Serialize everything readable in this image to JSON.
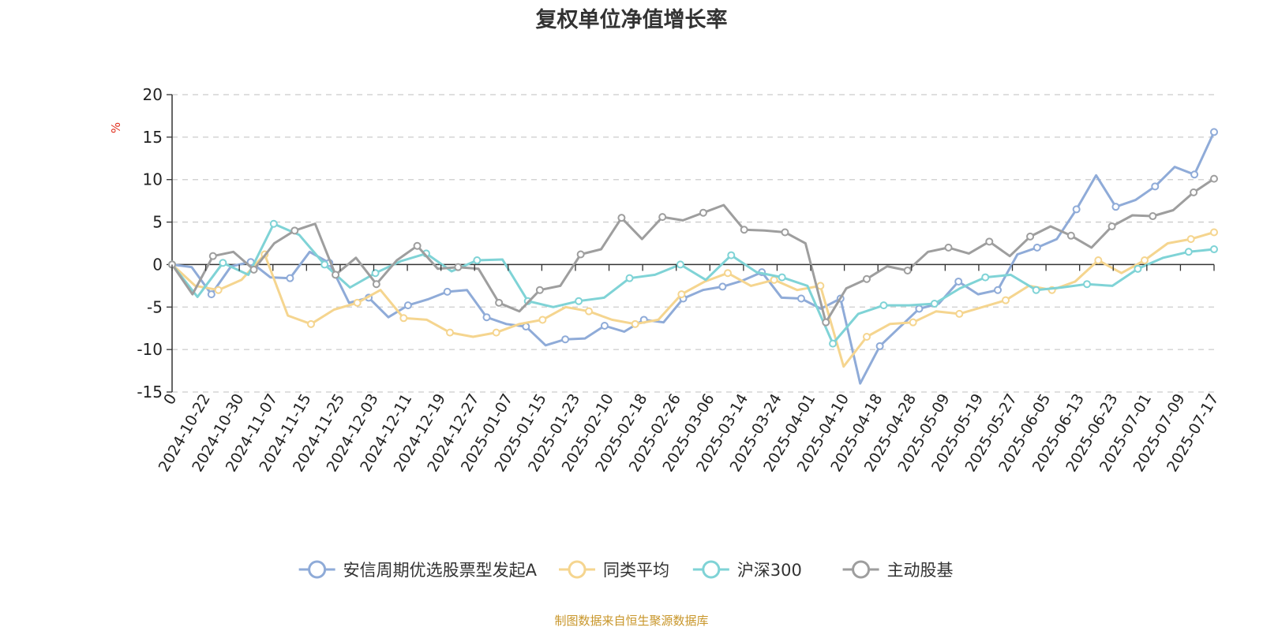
{
  "chart_data": {
    "type": "line",
    "title": "复权单位净值增长率",
    "ylabel": "%",
    "ylim": [
      -15,
      20
    ],
    "yticks": [
      20,
      15,
      10,
      5,
      0,
      -5,
      -10,
      -15
    ],
    "grid": true,
    "legend_position": "bottom",
    "x_tick_labels": [
      "0",
      "2024-10-22",
      "2024-10-30",
      "2024-11-07",
      "2024-11-15",
      "2024-11-25",
      "2024-12-03",
      "2024-12-11",
      "2024-12-19",
      "2024-12-27",
      "2025-01-07",
      "2025-01-15",
      "2025-01-23",
      "2025-02-10",
      "2025-02-18",
      "2025-02-26",
      "2025-03-06",
      "2025-03-14",
      "2025-03-24",
      "2025-04-01",
      "2025-04-10",
      "2025-04-18",
      "2025-04-28",
      "2025-05-09",
      "2025-05-19",
      "2025-05-27",
      "2025-06-05",
      "2025-06-13",
      "2025-06-23",
      "2025-07-01",
      "2025-07-09",
      "2025-07-17"
    ],
    "series": [
      {
        "name": "安信周期优选股票型发起A",
        "color": "#8fabd8",
        "values": [
          0,
          -0.3,
          -3.5,
          -0.2,
          0.3,
          -1.5,
          -1.6,
          1.5,
          0.2,
          -4.5,
          -3.9,
          -6.2,
          -4.8,
          -4.1,
          -3.2,
          -3.0,
          -6.2,
          -7.0,
          -7.3,
          -9.5,
          -8.8,
          -8.7,
          -7.2,
          -7.9,
          -6.5,
          -6.8,
          -4.0,
          -3.0,
          -2.6,
          -1.9,
          -0.9,
          -3.9,
          -4.0,
          -5.2,
          -4.0,
          -14.0,
          -9.6,
          -7.4,
          -5.2,
          -4.6,
          -2.0,
          -3.5,
          -3.0,
          1.2,
          2.0,
          3.0,
          6.5,
          10.5,
          6.8,
          7.6,
          9.2,
          11.5,
          10.6,
          15.6
        ]
      },
      {
        "name": "同类平均",
        "color": "#f5d58f",
        "values": [
          0,
          -2.5,
          -3.0,
          -1.8,
          1.2,
          -6.0,
          -7.0,
          -5.3,
          -4.5,
          -3.0,
          -6.3,
          -6.5,
          -8.0,
          -8.5,
          -8.0,
          -7.0,
          -6.5,
          -5.0,
          -5.5,
          -6.5,
          -7.0,
          -6.5,
          -3.5,
          -2.0,
          -1.0,
          -2.5,
          -1.8,
          -3.0,
          -2.5,
          -12.0,
          -8.5,
          -7.0,
          -6.8,
          -5.5,
          -5.8,
          -5.0,
          -4.2,
          -2.5,
          -3.0,
          -2.0,
          0.5,
          -1.0,
          0.5,
          2.5,
          3.0,
          3.8
        ]
      },
      {
        "name": "沪深300",
        "color": "#7fd3d6",
        "values": [
          0,
          -3.8,
          0.2,
          -1.2,
          4.8,
          3.5,
          0.0,
          -2.7,
          -1.0,
          0.4,
          1.3,
          -0.8,
          0.5,
          0.6,
          -4.3,
          -5.0,
          -4.3,
          -3.9,
          -1.6,
          -1.2,
          0.0,
          -1.8,
          1.1,
          -0.9,
          -1.5,
          -2.5,
          -9.3,
          -5.8,
          -4.8,
          -4.8,
          -4.6,
          -2.8,
          -1.5,
          -1.2,
          -3.0,
          -2.7,
          -2.3,
          -2.5,
          -0.5,
          0.8,
          1.5,
          1.8
        ]
      },
      {
        "name": "主动股基",
        "color": "#9e9e9e",
        "values": [
          0,
          -3.5,
          1.0,
          1.5,
          -0.6,
          2.5,
          4.0,
          4.8,
          -1.2,
          0.8,
          -2.3,
          0.5,
          2.2,
          -0.5,
          -0.3,
          -0.5,
          -4.5,
          -5.5,
          -3.0,
          -2.5,
          1.2,
          1.8,
          5.5,
          3.0,
          5.6,
          5.2,
          6.1,
          7.0,
          4.1,
          4.0,
          3.8,
          2.5,
          -6.8,
          -2.8,
          -1.7,
          -0.2,
          -0.7,
          1.5,
          2.0,
          1.3,
          2.7,
          1.0,
          3.3,
          4.5,
          3.4,
          2.0,
          4.5,
          5.8,
          5.7,
          6.4,
          8.5,
          10.1
        ]
      }
    ]
  },
  "legend": {
    "items": [
      "安信周期优选股票型发起A",
      "同类平均",
      "沪深300",
      "主动股基"
    ]
  },
  "footer": {
    "source": "制图数据来自恒生聚源数据库"
  }
}
